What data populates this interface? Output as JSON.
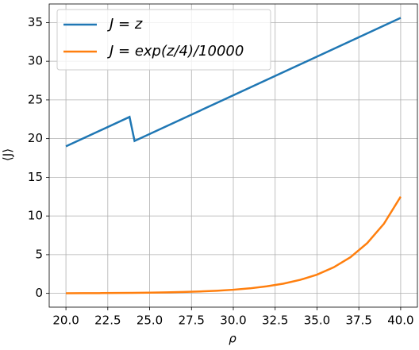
{
  "chart_data": {
    "type": "line",
    "xlabel": "ρ",
    "ylabel": "⟨J⟩",
    "xlim": [
      19,
      41
    ],
    "ylim": [
      -1.78,
      37.4
    ],
    "xticks": [
      {
        "value": 20,
        "label": "20.0"
      },
      22.5,
      {
        "value": 25,
        "label": "25.0"
      },
      27.5,
      {
        "value": 30,
        "label": "30.0"
      },
      32.5,
      {
        "value": 35,
        "label": "35.0"
      },
      37.5,
      {
        "value": 40,
        "label": "40.0"
      }
    ],
    "yticks": [
      0,
      5,
      10,
      15,
      20,
      25,
      30,
      35
    ],
    "grid": true,
    "legend": "upper left",
    "series": [
      {
        "name": "J = z",
        "color": "#1f77b4",
        "x": [
          20,
          23.8,
          24.1,
          40
        ],
        "values": [
          19.0,
          22.8,
          19.7,
          35.6
        ]
      },
      {
        "name": "J = exp(z/4)/10000",
        "color": "#ff7f0e",
        "x": [
          20,
          21,
          22,
          23,
          24,
          25,
          26,
          27,
          28,
          29,
          30,
          31,
          32,
          33,
          34,
          35,
          36,
          37,
          38,
          39,
          40
        ],
        "values": [
          0.018,
          0.025,
          0.034,
          0.047,
          0.066,
          0.091,
          0.127,
          0.176,
          0.244,
          0.339,
          0.47,
          0.65,
          0.91,
          1.26,
          1.75,
          2.42,
          3.37,
          4.67,
          6.49,
          9.0,
          12.5
        ]
      }
    ]
  }
}
